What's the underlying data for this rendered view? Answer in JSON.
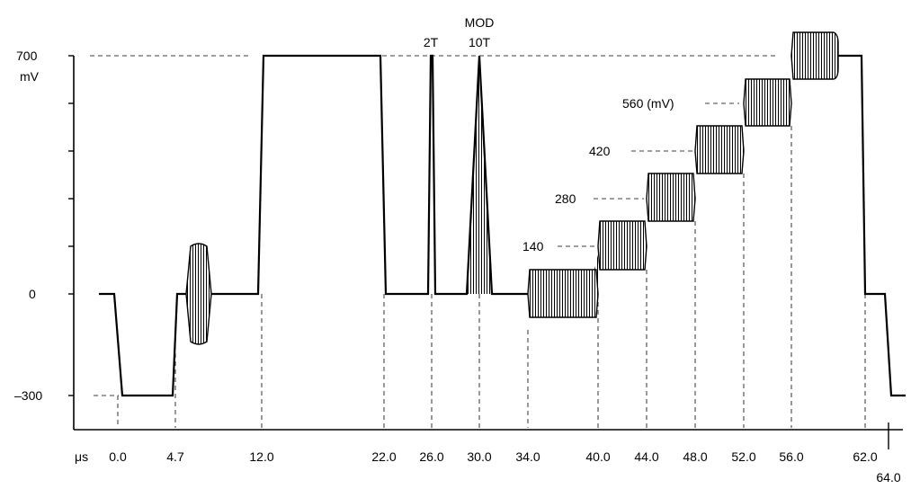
{
  "y_labels": {
    "v700": "700",
    "unit_mv": "mV",
    "v0": "0",
    "vneg300": "–300"
  },
  "x_labels": {
    "unit": "μs",
    "t0": "0.0",
    "t4_7": "4.7",
    "t12": "12.0",
    "t22": "22.0",
    "t26": "26.0",
    "t30": "30.0",
    "t34": "34.0",
    "t40": "40.0",
    "t44": "44.0",
    "t48": "48.0",
    "t52": "52.0",
    "t56": "56.0",
    "t62": "62.0",
    "t64": "64.0"
  },
  "annotations": {
    "pulse_2t": "2T",
    "mod": "MOD",
    "pulse_10t": "10T",
    "step_140": "140",
    "step_280": "280",
    "step_420": "420",
    "step_560": "560 (mV)"
  }
}
